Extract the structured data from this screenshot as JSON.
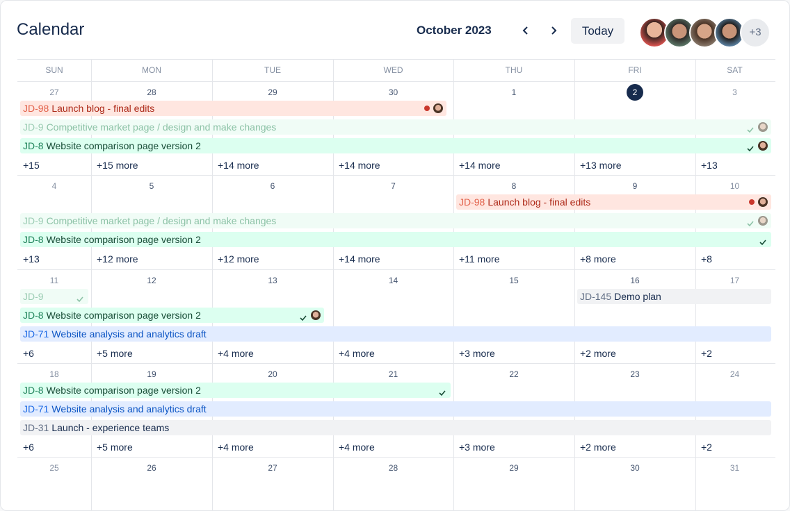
{
  "header": {
    "title": "Calendar",
    "month": "October 2023",
    "today": "Today",
    "more_avatars": "+3"
  },
  "weekdays": [
    "SUN",
    "MON",
    "TUE",
    "WED",
    "THU",
    "FRI",
    "SAT"
  ],
  "weeks": [
    {
      "days": [
        27,
        28,
        29,
        30,
        1,
        2,
        3
      ],
      "events": [
        {
          "key": "JD-98",
          "title": "Launch blog - final edits"
        },
        {
          "key": "JD-9",
          "title": "Competitive market page / design and make changes"
        },
        {
          "key": "JD-8",
          "title": "Website comparison page version 2"
        }
      ],
      "more": [
        "+15",
        "+15 more",
        "+14 more",
        "+14 more",
        "+14 more",
        "+13 more",
        "+13"
      ]
    },
    {
      "days": [
        4,
        5,
        6,
        7,
        8,
        9,
        10
      ],
      "events": [
        {
          "key": "JD-98",
          "title": "Launch blog - final edits"
        },
        {
          "key": "JD-9",
          "title": "Competitive market page / design and make changes"
        },
        {
          "key": "JD-8",
          "title": "Website comparison page version 2"
        }
      ],
      "more": [
        "+13",
        "+12 more",
        "+12 more",
        "+14 more",
        "+11 more",
        "+8 more",
        "+8"
      ]
    },
    {
      "days": [
        11,
        12,
        13,
        14,
        15,
        16,
        17
      ],
      "events": [
        {
          "key": "JD-9",
          "title": ""
        },
        {
          "key": "JD-145",
          "title": "Demo plan"
        },
        {
          "key": "JD-8",
          "title": "Website comparison page version 2"
        },
        {
          "key": "JD-71",
          "title": "Website analysis and analytics draft"
        }
      ],
      "more": [
        "+6",
        "+5 more",
        "+4 more",
        "+4 more",
        "+3 more",
        "+2 more",
        "+2"
      ]
    },
    {
      "days": [
        18,
        19,
        20,
        21,
        22,
        23,
        24
      ],
      "events": [
        {
          "key": "JD-8",
          "title": "Website comparison page version 2"
        },
        {
          "key": "JD-71",
          "title": "Website analysis and analytics draft"
        },
        {
          "key": "JD-31",
          "title": "Launch - experience teams"
        }
      ],
      "more": [
        "+6",
        "+5 more",
        "+4 more",
        "+4 more",
        "+3 more",
        "+2 more",
        "+2"
      ]
    },
    {
      "days": [
        25,
        26,
        27,
        28,
        29,
        30,
        31
      ],
      "events": [],
      "more": []
    }
  ]
}
